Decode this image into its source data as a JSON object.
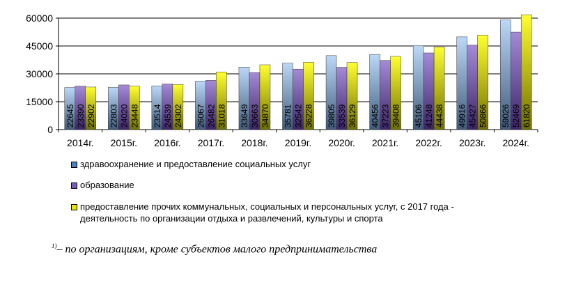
{
  "chart_data": {
    "type": "bar",
    "categories": [
      "2014г.",
      "2015г.",
      "2016г.",
      "2017г.",
      "2018г.",
      "2019г.",
      "2020г.",
      "2021г.",
      "2022г.",
      "2023г.",
      "2024г."
    ],
    "series": [
      {
        "name": "здравоохранение и предоставление социальных услуг",
        "values": [
          22645,
          22803,
          23514,
          26067,
          33649,
          35781,
          39805,
          40456,
          45106,
          49916,
          59026
        ]
      },
      {
        "name": "образование",
        "values": [
          23390,
          24020,
          24539,
          26482,
          30663,
          32542,
          33539,
          37223,
          41248,
          45427,
          52469
        ]
      },
      {
        "name": "предоставление прочих коммунальных, социальных и персональных услуг, с 2017 года - деятельность по организации отдыха и развлечений, культуры и спорта",
        "values": [
          22902,
          23448,
          24302,
          31018,
          34870,
          36228,
          36129,
          39408,
          44438,
          50866,
          61820
        ]
      }
    ],
    "ylim": [
      0,
      60000
    ],
    "yticks": [
      0,
      15000,
      30000,
      45000,
      60000
    ],
    "grid": true,
    "legend_position": "bottom",
    "colors": [
      "#a9c9f0",
      "#9b7fd4",
      "#e8e800"
    ]
  },
  "legend_lines": {
    "s1": [
      "здравоохранение и предоставление социальных услуг"
    ],
    "s2": [
      "образование"
    ],
    "s3": [
      "предоставление прочих коммунальных, социальных и персональных услуг, с 2017 года -",
      "деятельность по организации отдыха и развлечений, культуры и спорта"
    ]
  },
  "footnote": {
    "marker": "1)",
    "text": "– по организациям, кроме субъектов малого предпринимательства"
  }
}
